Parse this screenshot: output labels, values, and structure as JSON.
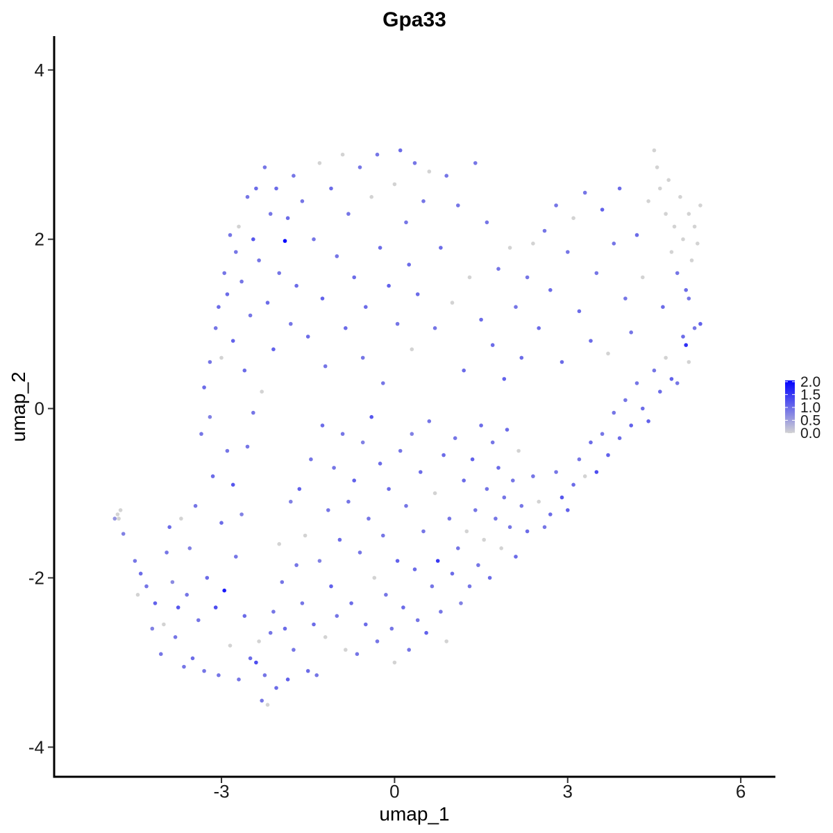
{
  "chart_data": {
    "type": "scatter",
    "title": "Gpa33",
    "xlabel": "umap_1",
    "ylabel": "umap_2",
    "xlim": [
      -5.9,
      6.6
    ],
    "ylim": [
      -4.35,
      4.4
    ],
    "x_ticks": [
      -3,
      0,
      3,
      6
    ],
    "y_ticks": [
      -4,
      -2,
      0,
      2,
      4
    ],
    "x_tick_labels": [
      "-3",
      "0",
      "3",
      "6"
    ],
    "y_tick_labels": [
      "-4",
      "-2",
      "0",
      "2",
      "4"
    ],
    "grid": false,
    "legend": {
      "type": "colorbar",
      "placement": "right",
      "range": [
        0,
        2.05
      ],
      "ticks": [
        0,
        0.5,
        1.0,
        1.5,
        2.0
      ],
      "tick_labels": [
        "0.0",
        "0.5",
        "1.0",
        "1.5",
        "2.0"
      ],
      "low_color": "#d3d3d3",
      "high_color": "#0000ff"
    },
    "point_color_scale": [
      "#d3d3d3",
      "#0000ff"
    ],
    "points": [
      [
        -4.8,
        -1.25,
        0
      ],
      [
        -4.75,
        -1.2,
        0
      ],
      [
        -4.78,
        -1.3,
        0
      ],
      [
        -4.7,
        -1.48,
        0.8
      ],
      [
        -4.85,
        -1.3,
        0.6
      ],
      [
        -4.5,
        -1.8,
        0.9
      ],
      [
        -4.45,
        -2.2,
        0
      ],
      [
        -4.4,
        -1.95,
        1.0
      ],
      [
        -4.3,
        -2.1,
        0.9
      ],
      [
        -4.2,
        -2.6,
        0.8
      ],
      [
        -4.15,
        -2.3,
        1.1
      ],
      [
        -4.05,
        -2.9,
        0.9
      ],
      [
        -4.0,
        -2.55,
        0
      ],
      [
        -3.95,
        -1.7,
        0.9
      ],
      [
        -3.9,
        -1.4,
        1.0
      ],
      [
        -3.85,
        -2.05,
        0.7
      ],
      [
        -3.8,
        -2.7,
        0.9
      ],
      [
        -3.75,
        -2.35,
        1.2
      ],
      [
        -3.7,
        -1.3,
        0
      ],
      [
        -3.65,
        -3.05,
        0.9
      ],
      [
        -3.6,
        -2.2,
        0.9
      ],
      [
        -3.55,
        -1.65,
        0.8
      ],
      [
        -3.5,
        -2.95,
        1.0
      ],
      [
        -3.45,
        -1.15,
        0.9
      ],
      [
        -3.4,
        -2.5,
        0.9
      ],
      [
        -3.35,
        -0.3,
        0.9
      ],
      [
        -3.3,
        -3.1,
        0.9
      ],
      [
        -3.25,
        -2.0,
        1.0
      ],
      [
        -3.2,
        -0.1,
        0.8
      ],
      [
        -3.15,
        -0.8,
        1.0
      ],
      [
        -3.1,
        -2.35,
        1.3
      ],
      [
        -3.05,
        -3.15,
        0.9
      ],
      [
        -3.0,
        -1.35,
        1.0
      ],
      [
        -2.95,
        -2.15,
        1.8
      ],
      [
        -2.9,
        -0.5,
        0.9
      ],
      [
        -2.85,
        -2.8,
        0
      ],
      [
        -2.8,
        -0.9,
        1.2
      ],
      [
        -2.75,
        -1.75,
        0.9
      ],
      [
        -2.7,
        -3.2,
        0.9
      ],
      [
        -2.65,
        -1.25,
        0.8
      ],
      [
        -2.6,
        -2.45,
        1.0
      ],
      [
        -2.55,
        -0.45,
        0.9
      ],
      [
        -2.5,
        -2.95,
        1.0
      ],
      [
        -2.45,
        -0.05,
        0.9
      ],
      [
        -2.4,
        -3.0,
        1.3
      ],
      [
        -2.35,
        -2.75,
        0
      ],
      [
        -2.3,
        -3.45,
        0.9
      ],
      [
        -2.25,
        -3.15,
        0.9
      ],
      [
        -2.2,
        -3.5,
        0
      ],
      [
        -2.15,
        -2.65,
        0.9
      ],
      [
        -2.1,
        -2.4,
        0.9
      ],
      [
        -2.05,
        -3.3,
        1.0
      ],
      [
        -2.0,
        -1.6,
        0
      ],
      [
        -1.95,
        -2.05,
        0.9
      ],
      [
        -1.9,
        -2.6,
        1.0
      ],
      [
        -1.85,
        -3.2,
        1.1
      ],
      [
        -1.8,
        -1.1,
        0.8
      ],
      [
        -1.75,
        -2.85,
        0.9
      ],
      [
        -1.7,
        -1.85,
        0.9
      ],
      [
        -1.65,
        -0.95,
        1.1
      ],
      [
        -1.6,
        -2.3,
        0.9
      ],
      [
        -1.55,
        -1.5,
        0
      ],
      [
        -1.5,
        -3.1,
        1.0
      ],
      [
        -1.45,
        -0.6,
        0.9
      ],
      [
        -1.4,
        -2.55,
        1.0
      ],
      [
        -1.35,
        -3.15,
        0.9
      ],
      [
        -1.3,
        -1.8,
        0.8
      ],
      [
        -1.25,
        -0.2,
        1.0
      ],
      [
        -1.2,
        -2.7,
        0
      ],
      [
        -1.15,
        -1.2,
        0.9
      ],
      [
        -1.1,
        -2.1,
        1.1
      ],
      [
        -1.05,
        -0.7,
        0.9
      ],
      [
        -1.0,
        -2.45,
        0.9
      ],
      [
        -0.95,
        -1.55,
        1.0
      ],
      [
        -0.9,
        -0.3,
        0.9
      ],
      [
        -0.85,
        -2.85,
        0
      ],
      [
        -0.8,
        -1.1,
        0.9
      ],
      [
        -0.75,
        -2.3,
        1.0
      ],
      [
        -0.7,
        -0.85,
        1.1
      ],
      [
        -0.65,
        -2.9,
        0.9
      ],
      [
        -0.6,
        -1.7,
        0.9
      ],
      [
        -0.55,
        -0.4,
        0.8
      ],
      [
        -0.5,
        -2.55,
        1.0
      ],
      [
        -0.45,
        -1.3,
        0.9
      ],
      [
        -0.4,
        -0.1,
        1.2
      ],
      [
        -0.35,
        -2.0,
        0
      ],
      [
        -0.3,
        -2.75,
        0.9
      ],
      [
        -0.25,
        -0.65,
        1.0
      ],
      [
        -0.2,
        -1.5,
        0.9
      ],
      [
        -0.15,
        -2.2,
        0.9
      ],
      [
        -0.1,
        -0.95,
        1.0
      ],
      [
        -0.05,
        -2.6,
        0.9
      ],
      [
        0.0,
        -3.0,
        0
      ],
      [
        0.05,
        -1.8,
        1.1
      ],
      [
        0.1,
        -0.5,
        0.9
      ],
      [
        0.15,
        -2.35,
        1.0
      ],
      [
        0.2,
        -1.15,
        0.9
      ],
      [
        0.25,
        -2.85,
        0.9
      ],
      [
        0.3,
        -0.3,
        0.8
      ],
      [
        0.35,
        -1.9,
        1.0
      ],
      [
        0.4,
        -2.5,
        0.9
      ],
      [
        0.45,
        -0.75,
        1.0
      ],
      [
        0.5,
        -1.45,
        0.9
      ],
      [
        0.55,
        -2.65,
        1.1
      ],
      [
        0.6,
        -0.15,
        0.9
      ],
      [
        0.65,
        -2.1,
        0.9
      ],
      [
        0.7,
        -1.0,
        0
      ],
      [
        0.75,
        -1.8,
        1.5
      ],
      [
        0.8,
        -2.4,
        0.9
      ],
      [
        0.85,
        -0.55,
        1.0
      ],
      [
        0.9,
        -2.75,
        0
      ],
      [
        0.95,
        -1.3,
        0.9
      ],
      [
        1.0,
        -1.95,
        1.0
      ],
      [
        1.05,
        -0.35,
        0.9
      ],
      [
        1.1,
        -1.65,
        0.9
      ],
      [
        1.15,
        -2.3,
        0.8
      ],
      [
        1.2,
        -0.85,
        1.0
      ],
      [
        1.25,
        -1.45,
        0
      ],
      [
        1.3,
        -2.1,
        0.9
      ],
      [
        1.35,
        -0.6,
        1.1
      ],
      [
        1.4,
        -1.2,
        0.9
      ],
      [
        1.45,
        -1.85,
        0.9
      ],
      [
        1.5,
        -0.2,
        1.0
      ],
      [
        1.55,
        -1.55,
        0
      ],
      [
        1.6,
        -0.95,
        0.9
      ],
      [
        1.65,
        -2.0,
        1.0
      ],
      [
        1.7,
        -0.4,
        0.9
      ],
      [
        1.75,
        -1.3,
        0.9
      ],
      [
        1.8,
        -0.7,
        1.0
      ],
      [
        1.85,
        -1.65,
        0
      ],
      [
        1.9,
        -1.05,
        0.9
      ],
      [
        1.95,
        -0.25,
        1.0
      ],
      [
        2.0,
        -1.4,
        0.9
      ],
      [
        2.05,
        -0.85,
        0.9
      ],
      [
        2.1,
        -1.75,
        1.0
      ],
      [
        2.15,
        -0.5,
        0
      ],
      [
        2.2,
        -1.15,
        0.9
      ],
      [
        2.3,
        -1.45,
        1.0
      ],
      [
        2.4,
        -0.8,
        0.9
      ],
      [
        2.5,
        -1.1,
        0
      ],
      [
        2.6,
        -1.4,
        0.9
      ],
      [
        2.7,
        -1.25,
        1.0
      ],
      [
        2.8,
        -0.75,
        0.9
      ],
      [
        2.9,
        -1.05,
        1.2
      ],
      [
        3.0,
        -1.2,
        1.1
      ],
      [
        3.1,
        -0.9,
        1.0
      ],
      [
        3.2,
        -0.6,
        0.9
      ],
      [
        3.3,
        -0.8,
        0
      ],
      [
        3.4,
        -0.4,
        1.0
      ],
      [
        3.5,
        -0.75,
        1.3
      ],
      [
        3.6,
        -0.3,
        0.9
      ],
      [
        3.7,
        -0.55,
        1.1
      ],
      [
        3.8,
        -0.05,
        0.9
      ],
      [
        3.9,
        -0.35,
        1.0
      ],
      [
        4.0,
        0.1,
        0.9
      ],
      [
        4.1,
        -0.2,
        1.1
      ],
      [
        4.2,
        0.3,
        0.9
      ],
      [
        4.3,
        0.0,
        1.0
      ],
      [
        4.4,
        -0.15,
        1.1
      ],
      [
        4.5,
        0.45,
        0.9
      ],
      [
        4.6,
        0.2,
        1.0
      ],
      [
        4.7,
        0.6,
        0
      ],
      [
        4.8,
        0.35,
        1.1
      ],
      [
        4.9,
        0.3,
        0.9
      ],
      [
        5.0,
        0.85,
        1.0
      ],
      [
        5.05,
        0.75,
        1.6
      ],
      [
        5.1,
        0.55,
        0
      ],
      [
        5.2,
        0.95,
        0.9
      ],
      [
        5.3,
        1.0,
        1.1
      ],
      [
        5.1,
        1.3,
        0.9
      ],
      [
        -3.3,
        0.25,
        1.0
      ],
      [
        -3.2,
        0.55,
        0.9
      ],
      [
        -3.1,
        0.95,
        0.9
      ],
      [
        -3.05,
        1.2,
        1.0
      ],
      [
        -3.0,
        0.6,
        0
      ],
      [
        -2.95,
        1.6,
        0.9
      ],
      [
        -2.9,
        1.35,
        1.0
      ],
      [
        -2.85,
        2.05,
        0.9
      ],
      [
        -2.8,
        0.8,
        1.1
      ],
      [
        -2.75,
        1.85,
        0.9
      ],
      [
        -2.7,
        2.15,
        0
      ],
      [
        -2.65,
        1.5,
        0.9
      ],
      [
        -2.6,
        0.45,
        1.0
      ],
      [
        -2.55,
        2.5,
        0.9
      ],
      [
        -2.5,
        1.1,
        0.9
      ],
      [
        -2.45,
        2.0,
        1.2
      ],
      [
        -2.4,
        2.6,
        1.0
      ],
      [
        -2.35,
        1.75,
        0.9
      ],
      [
        -2.3,
        0.2,
        0
      ],
      [
        -2.25,
        2.85,
        0.9
      ],
      [
        -2.2,
        1.25,
        1.0
      ],
      [
        -2.15,
        2.3,
        0.9
      ],
      [
        -2.1,
        0.7,
        1.1
      ],
      [
        -2.05,
        2.6,
        1.0
      ],
      [
        -2.0,
        1.6,
        0.9
      ],
      [
        -1.9,
        1.98,
        2.0
      ],
      [
        -1.85,
        2.25,
        1.0
      ],
      [
        -1.8,
        1.0,
        0.9
      ],
      [
        -1.75,
        2.75,
        0.9
      ],
      [
        -1.7,
        1.45,
        1.0
      ],
      [
        -1.6,
        2.45,
        0.9
      ],
      [
        -1.5,
        0.85,
        1.0
      ],
      [
        -1.4,
        2.0,
        0.9
      ],
      [
        -1.3,
        2.9,
        0
      ],
      [
        -1.25,
        1.3,
        1.1
      ],
      [
        -1.2,
        0.5,
        0.9
      ],
      [
        -1.1,
        2.6,
        1.0
      ],
      [
        -1.0,
        1.8,
        0.9
      ],
      [
        -0.9,
        3.0,
        0
      ],
      [
        -0.85,
        0.95,
        1.0
      ],
      [
        -0.8,
        2.3,
        0.9
      ],
      [
        -0.7,
        1.55,
        1.0
      ],
      [
        -0.6,
        2.85,
        0.9
      ],
      [
        -0.55,
        0.6,
        0.9
      ],
      [
        -0.5,
        1.2,
        1.0
      ],
      [
        -0.4,
        2.5,
        0
      ],
      [
        -0.3,
        3.0,
        0.9
      ],
      [
        -0.25,
        1.9,
        1.0
      ],
      [
        -0.2,
        0.3,
        0.9
      ],
      [
        -0.1,
        1.45,
        1.1
      ],
      [
        0.0,
        2.65,
        0
      ],
      [
        0.05,
        1.0,
        0.9
      ],
      [
        0.1,
        3.05,
        1.0
      ],
      [
        0.2,
        2.2,
        0.9
      ],
      [
        0.25,
        1.7,
        1.0
      ],
      [
        0.3,
        0.7,
        0
      ],
      [
        0.35,
        2.9,
        0.9
      ],
      [
        0.4,
        1.35,
        1.0
      ],
      [
        0.5,
        2.45,
        0.9
      ],
      [
        0.6,
        2.8,
        0
      ],
      [
        0.7,
        0.95,
        0.9
      ],
      [
        0.8,
        1.9,
        1.0
      ],
      [
        0.9,
        2.75,
        0.9
      ],
      [
        1.0,
        1.25,
        0
      ],
      [
        1.1,
        2.4,
        0.9
      ],
      [
        1.2,
        0.45,
        1.0
      ],
      [
        1.3,
        1.55,
        0
      ],
      [
        1.4,
        2.9,
        0.9
      ],
      [
        1.5,
        1.05,
        1.0
      ],
      [
        1.6,
        2.2,
        0.9
      ],
      [
        1.7,
        0.75,
        1.0
      ],
      [
        1.8,
        1.65,
        0.9
      ],
      [
        1.9,
        0.35,
        1.1
      ],
      [
        2.0,
        1.9,
        0
      ],
      [
        2.1,
        1.2,
        0.9
      ],
      [
        2.2,
        0.6,
        1.0
      ],
      [
        2.3,
        1.55,
        0.9
      ],
      [
        2.4,
        1.95,
        0
      ],
      [
        2.5,
        0.95,
        1.0
      ],
      [
        2.6,
        2.1,
        0.9
      ],
      [
        2.7,
        1.4,
        1.0
      ],
      [
        2.8,
        2.4,
        0.9
      ],
      [
        2.9,
        0.55,
        1.0
      ],
      [
        3.0,
        1.85,
        0.9
      ],
      [
        3.1,
        2.25,
        0
      ],
      [
        3.2,
        1.15,
        1.0
      ],
      [
        3.3,
        2.55,
        0.9
      ],
      [
        3.4,
        0.8,
        1.0
      ],
      [
        3.5,
        1.6,
        0.9
      ],
      [
        3.6,
        2.35,
        1.1
      ],
      [
        3.7,
        0.65,
        0
      ],
      [
        3.8,
        1.95,
        0.9
      ],
      [
        3.9,
        2.6,
        1.0
      ],
      [
        4.0,
        1.3,
        0.9
      ],
      [
        4.1,
        0.9,
        0.9
      ],
      [
        4.2,
        2.05,
        1.0
      ],
      [
        4.3,
        1.55,
        0
      ],
      [
        4.4,
        2.45,
        0
      ],
      [
        4.5,
        3.05,
        0
      ],
      [
        4.55,
        2.85,
        0
      ],
      [
        4.6,
        2.6,
        0
      ],
      [
        4.65,
        1.2,
        1.0
      ],
      [
        4.7,
        2.3,
        0
      ],
      [
        4.75,
        2.7,
        0
      ],
      [
        4.8,
        1.85,
        0
      ],
      [
        4.85,
        2.15,
        0
      ],
      [
        4.9,
        1.6,
        0.9
      ],
      [
        4.95,
        2.5,
        0
      ],
      [
        5.0,
        2.0,
        0
      ],
      [
        5.05,
        1.4,
        1.0
      ],
      [
        5.1,
        2.3,
        0
      ],
      [
        5.15,
        1.75,
        0
      ],
      [
        5.2,
        2.15,
        0
      ],
      [
        5.25,
        1.95,
        0
      ],
      [
        5.3,
        2.4,
        0
      ]
    ]
  }
}
